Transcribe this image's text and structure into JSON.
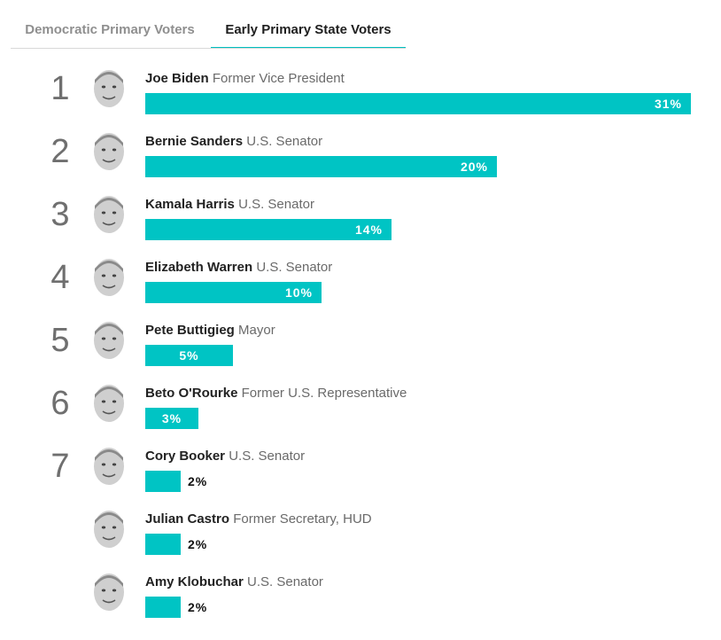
{
  "tabs": [
    {
      "label": "Democratic Primary Voters",
      "active": false
    },
    {
      "label": "Early Primary State Voters",
      "active": true
    }
  ],
  "colors": {
    "bar": "#00c4c4",
    "active_tab_underline": "#00bfbf",
    "rank": "#6f6f6f"
  },
  "chart_data": {
    "type": "bar",
    "orientation": "horizontal",
    "title": "",
    "xlabel": "",
    "ylabel": "",
    "xlim": [
      0,
      31
    ],
    "categories": [
      "Joe Biden",
      "Bernie Sanders",
      "Kamala Harris",
      "Elizabeth Warren",
      "Pete Buttigieg",
      "Beto O'Rourke",
      "Cory Booker",
      "Julian Castro",
      "Amy Klobuchar"
    ],
    "values": [
      31,
      20,
      14,
      10,
      5,
      3,
      2,
      2,
      2
    ],
    "rows": [
      {
        "rank": "1",
        "name": "Joe Biden",
        "title": "Former Vice President",
        "value": 31,
        "label": "31%",
        "avatar": "candidate-photo-icon"
      },
      {
        "rank": "2",
        "name": "Bernie Sanders",
        "title": "U.S. Senator",
        "value": 20,
        "label": "20%",
        "avatar": "candidate-photo-icon"
      },
      {
        "rank": "3",
        "name": "Kamala Harris",
        "title": "U.S. Senator",
        "value": 14,
        "label": "14%",
        "avatar": "candidate-photo-icon"
      },
      {
        "rank": "4",
        "name": "Elizabeth Warren",
        "title": "U.S. Senator",
        "value": 10,
        "label": "10%",
        "avatar": "candidate-photo-icon"
      },
      {
        "rank": "5",
        "name": "Pete Buttigieg",
        "title": "Mayor",
        "value": 5,
        "label": "5%",
        "avatar": "candidate-photo-icon"
      },
      {
        "rank": "6",
        "name": "Beto O'Rourke",
        "title": "Former U.S. Representative",
        "value": 3,
        "label": "3%",
        "avatar": "candidate-photo-icon"
      },
      {
        "rank": "7",
        "name": "Cory Booker",
        "title": "U.S. Senator",
        "value": 2,
        "label": "2%",
        "avatar": "candidate-photo-icon"
      },
      {
        "rank": "",
        "name": "Julian Castro",
        "title": "Former Secretary, HUD",
        "value": 2,
        "label": "2%",
        "avatar": "candidate-photo-icon"
      },
      {
        "rank": "",
        "name": "Amy Klobuchar",
        "title": "U.S. Senator",
        "value": 2,
        "label": "2%",
        "avatar": "candidate-photo-icon"
      }
    ]
  }
}
